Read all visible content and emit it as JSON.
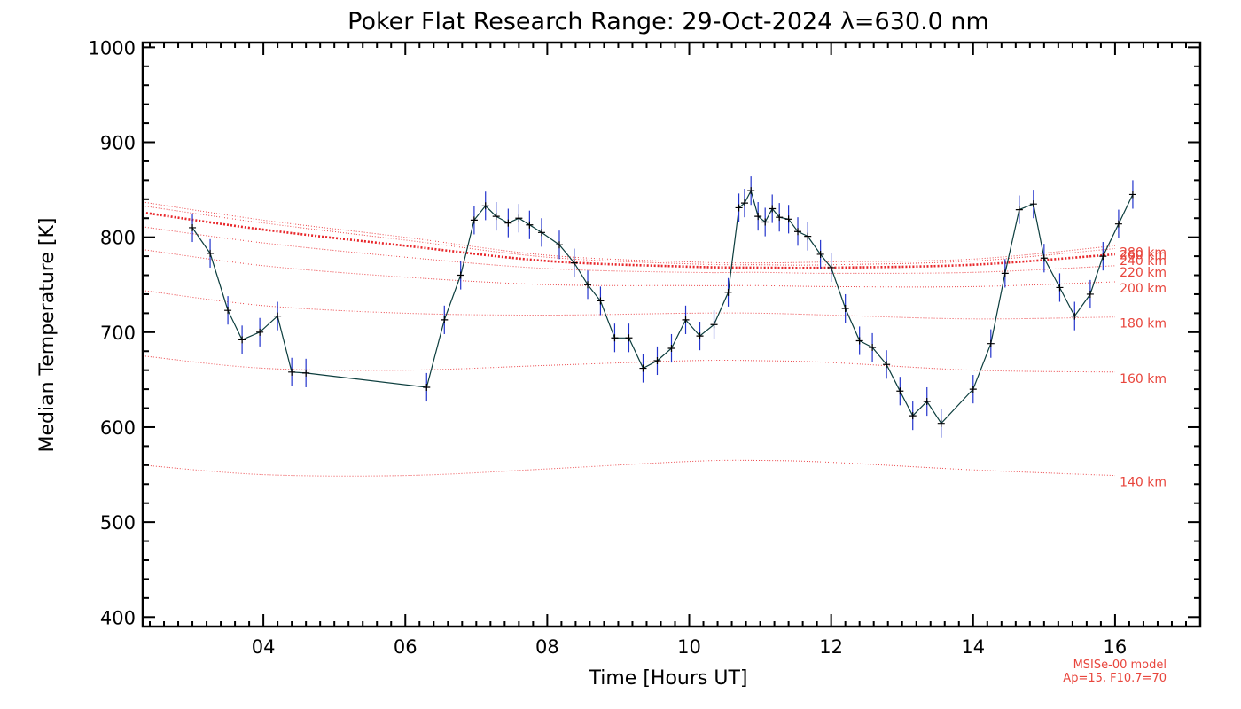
{
  "colors": {
    "line": "#0b3d3d",
    "error_bar": "#2233cc",
    "marker": "#000000",
    "model": "#e8262a",
    "model_label": "#e8453c"
  },
  "chart_data": {
    "type": "line",
    "title": "Poker Flat Research Range: 29-Oct-2024 λ=630.0 nm",
    "xlabel": "Time [Hours UT]",
    "ylabel": "Median Temperature [K]",
    "xlim": [
      2.3,
      17.2
    ],
    "ylim": [
      390,
      1005
    ],
    "x_ticks": [
      4,
      6,
      8,
      10,
      12,
      14,
      16
    ],
    "x_tick_labels": [
      "04",
      "06",
      "08",
      "10",
      "12",
      "14",
      "16"
    ],
    "y_ticks": [
      400,
      500,
      600,
      700,
      800,
      900,
      1000
    ],
    "y_tick_labels": [
      "400",
      "500",
      "600",
      "700",
      "800",
      "900",
      "1000"
    ],
    "series": [
      {
        "name": "Median Temperature",
        "x": [
          3.0,
          3.25,
          3.5,
          3.7,
          3.95,
          4.2,
          4.4,
          4.6,
          6.3,
          6.55,
          6.78,
          6.97,
          7.13,
          7.28,
          7.45,
          7.6,
          7.75,
          7.92,
          8.17,
          8.38,
          8.57,
          8.75,
          8.95,
          9.15,
          9.35,
          9.55,
          9.75,
          9.95,
          10.15,
          10.35,
          10.55,
          10.7,
          10.78,
          10.87,
          10.97,
          11.07,
          11.17,
          11.27,
          11.4,
          11.53,
          11.67,
          11.85,
          12.0,
          12.2,
          12.4,
          12.58,
          12.78,
          12.97,
          13.15,
          13.35,
          13.55,
          14.0,
          14.25,
          14.45,
          14.65,
          14.85,
          15.0,
          15.22,
          15.43,
          15.65,
          15.83,
          16.05,
          16.25
        ],
        "y": [
          810,
          783,
          723,
          692,
          700,
          717,
          658,
          657,
          642,
          713,
          760,
          818,
          833,
          822,
          815,
          820,
          813,
          805,
          792,
          773,
          750,
          733,
          694,
          694,
          662,
          670,
          683,
          713,
          696,
          708,
          742,
          831,
          836,
          849,
          822,
          816,
          830,
          821,
          819,
          806,
          801,
          782,
          768,
          725,
          691,
          684,
          666,
          638,
          612,
          627,
          604,
          640,
          688,
          762,
          829,
          835,
          778,
          747,
          717,
          740,
          780,
          814,
          845
        ],
        "errors": 15
      }
    ],
    "model_curves": [
      {
        "label": "140 km",
        "x": [
          2.3,
          4,
          6,
          8,
          10,
          11,
          12,
          14,
          16
        ],
        "y": [
          560,
          550,
          549,
          556,
          564,
          565,
          563,
          555,
          549
        ]
      },
      {
        "label": "160 km",
        "x": [
          2.3,
          4,
          6,
          8,
          10,
          11,
          12,
          14,
          16
        ],
        "y": [
          675,
          662,
          660,
          665,
          670,
          670,
          668,
          660,
          658
        ]
      },
      {
        "label": "180 km",
        "x": [
          2.3,
          4,
          6,
          8,
          10,
          11,
          12,
          14,
          16
        ],
        "y": [
          744,
          728,
          720,
          718,
          720,
          720,
          718,
          714,
          716
        ]
      },
      {
        "label": "200 km",
        "x": [
          2.3,
          4,
          6,
          8,
          10,
          11,
          12,
          14,
          16
        ],
        "y": [
          787,
          770,
          758,
          750,
          749,
          749,
          748,
          748,
          753
        ]
      },
      {
        "label": "220 km",
        "x": [
          2.3,
          4,
          6,
          8,
          10,
          11,
          12,
          14,
          16
        ],
        "y": [
          811,
          794,
          779,
          767,
          763,
          763,
          762,
          763,
          770
        ]
      },
      {
        "label": "240 km",
        "x": [
          2.3,
          4,
          6,
          8,
          10,
          11,
          12,
          14,
          16
        ],
        "y": [
          826,
          808,
          791,
          775,
          769,
          768,
          768,
          771,
          782
        ]
      },
      {
        "label": "260 km",
        "x": [
          2.3,
          4,
          6,
          8,
          10,
          11,
          12,
          14,
          16
        ],
        "y": [
          833,
          815,
          797,
          779,
          772,
          771,
          771,
          775,
          788
        ]
      },
      {
        "label": "280 km",
        "x": [
          2.3,
          4,
          6,
          8,
          10,
          11,
          12,
          14,
          16
        ],
        "y": [
          837,
          818,
          800,
          781,
          774,
          773,
          774,
          777,
          791
        ]
      }
    ],
    "model_note": [
      "MSISe-00 model",
      "Ap=15, F10.7=70"
    ]
  }
}
